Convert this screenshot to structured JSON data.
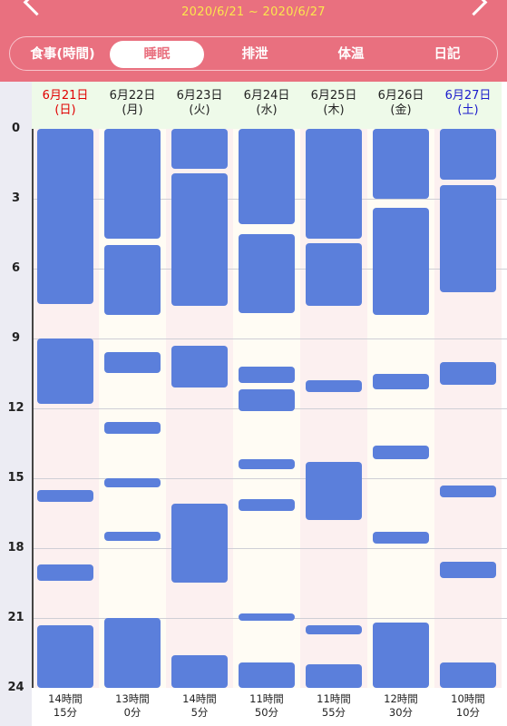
{
  "header": {
    "date_range": "2020/6/21 ~ 2020/6/27",
    "tabs": [
      {
        "label": "食事(時間)",
        "active": false
      },
      {
        "label": "睡眠",
        "active": true
      },
      {
        "label": "排泄",
        "active": false
      },
      {
        "label": "体温",
        "active": false
      },
      {
        "label": "日記",
        "active": false
      }
    ],
    "colors": {
      "header_bg": "#e9707f",
      "date_text": "#fbe64d",
      "bar": "#5b7fdb"
    },
    "icons": {
      "prev": "chevron-left-icon",
      "next": "chevron-right-icon"
    }
  },
  "chart_data": {
    "type": "bar",
    "orientation": "vertical-timeline",
    "y_axis": {
      "ticks": [
        "0",
        "3",
        "6",
        "9",
        "12",
        "15",
        "18",
        "21",
        "24"
      ],
      "range": [
        0,
        24
      ],
      "unit": "hour"
    },
    "days": [
      {
        "date": "6月21日",
        "weekday": "(日)",
        "total_line1": "14時間",
        "total_line2": "15分",
        "segments": [
          [
            0,
            7.5
          ],
          [
            9.0,
            11.8
          ],
          [
            15.5,
            16.0
          ],
          [
            18.7,
            19.4
          ],
          [
            21.3,
            24
          ]
        ]
      },
      {
        "date": "6月22日",
        "weekday": "(月)",
        "total_line1": "13時間",
        "total_line2": "0分",
        "segments": [
          [
            0,
            4.7
          ],
          [
            5.0,
            8.0
          ],
          [
            9.6,
            10.5
          ],
          [
            12.6,
            13.1
          ],
          [
            15.0,
            15.4
          ],
          [
            17.3,
            17.7
          ],
          [
            21.0,
            24
          ]
        ]
      },
      {
        "date": "6月23日",
        "weekday": "(火)",
        "total_line1": "14時間",
        "total_line2": "5分",
        "segments": [
          [
            0,
            1.7
          ],
          [
            1.9,
            7.6
          ],
          [
            9.3,
            11.1
          ],
          [
            16.1,
            19.5
          ],
          [
            22.6,
            24
          ]
        ]
      },
      {
        "date": "6月24日",
        "weekday": "(水)",
        "total_line1": "11時間",
        "total_line2": "50分",
        "segments": [
          [
            0,
            4.1
          ],
          [
            4.5,
            7.9
          ],
          [
            10.2,
            10.9
          ],
          [
            11.2,
            12.1
          ],
          [
            14.2,
            14.6
          ],
          [
            15.9,
            16.4
          ],
          [
            20.8,
            21.1
          ],
          [
            22.9,
            24
          ]
        ]
      },
      {
        "date": "6月25日",
        "weekday": "(木)",
        "total_line1": "11時間",
        "total_line2": "55分",
        "segments": [
          [
            0,
            4.7
          ],
          [
            4.9,
            7.6
          ],
          [
            10.8,
            11.3
          ],
          [
            14.3,
            16.8
          ],
          [
            21.3,
            21.7
          ],
          [
            23.0,
            24
          ]
        ]
      },
      {
        "date": "6月26日",
        "weekday": "(金)",
        "total_line1": "12時間",
        "total_line2": "30分",
        "segments": [
          [
            0,
            3.0
          ],
          [
            3.4,
            8.0
          ],
          [
            10.5,
            11.2
          ],
          [
            13.6,
            14.2
          ],
          [
            17.3,
            17.8
          ],
          [
            21.2,
            24
          ]
        ]
      },
      {
        "date": "6月27日",
        "weekday": "(土)",
        "total_line1": "10時間",
        "total_line2": "10分",
        "segments": [
          [
            0,
            2.2
          ],
          [
            2.4,
            7.0
          ],
          [
            10.0,
            11.0
          ],
          [
            15.3,
            15.8
          ],
          [
            18.6,
            19.3
          ],
          [
            22.9,
            24
          ]
        ]
      }
    ]
  }
}
